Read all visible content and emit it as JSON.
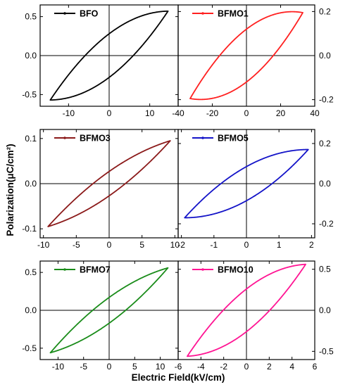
{
  "figure": {
    "xlabel": "Electric Field(kV/cm)",
    "ylabel": "Polarization(μC/cm²)"
  },
  "chart_data": [
    {
      "type": "line",
      "panel_row": 1,
      "panel_col": "left",
      "yaxis_side": "left",
      "legend": "BFO",
      "color": "#000000",
      "xlim": [
        -17,
        17
      ],
      "ylim": [
        -0.65,
        0.65
      ],
      "xticks": [
        -10,
        0,
        10
      ],
      "xtick_labels": [
        "-10",
        "0",
        "10"
      ],
      "yticks": [
        -0.5,
        0,
        0.5
      ],
      "ytick_labels": [
        "-0.5",
        "0.0",
        "0.5"
      ],
      "loop": {
        "x_max": 14.5,
        "y_max": 0.57,
        "x_min": -14.5,
        "y_min": -0.57,
        "remanent_polarization": 0.28,
        "coercive_field": 6
      }
    },
    {
      "type": "line",
      "panel_row": 1,
      "panel_col": "right",
      "yaxis_side": "right",
      "legend": "BFMO1",
      "color": "#ff2020",
      "xlim": [
        -40,
        40
      ],
      "ylim": [
        -0.23,
        0.23
      ],
      "xticks": [
        -40,
        -20,
        0,
        20,
        40
      ],
      "xtick_labels": [
        "-40",
        "-20",
        "0",
        "20",
        "40"
      ],
      "yticks": [
        -0.2,
        0,
        0.2
      ],
      "ytick_labels": [
        "-0.2",
        "0.0",
        "0.2"
      ],
      "loop": {
        "x_max": 33,
        "y_max": 0.195,
        "x_min": -33,
        "y_min": -0.195,
        "remanent_polarization": 0.12,
        "coercive_field": 19
      }
    },
    {
      "type": "line",
      "panel_row": 2,
      "panel_col": "left",
      "yaxis_side": "left",
      "legend": "BFMO3",
      "color": "#8b1a1a",
      "xlim": [
        -10.5,
        10.5
      ],
      "ylim": [
        -0.12,
        0.12
      ],
      "xticks": [
        -10,
        -5,
        0,
        5,
        10
      ],
      "xtick_labels": [
        "-10",
        "-5",
        "0",
        "5",
        "10"
      ],
      "yticks": [
        -0.1,
        0,
        0.1
      ],
      "ytick_labels": [
        "-0.1",
        "0.0",
        "0.1"
      ],
      "loop": {
        "x_max": 9.3,
        "y_max": 0.095,
        "x_min": -9.3,
        "y_min": -0.095,
        "remanent_polarization": 0.027,
        "coercive_field": 2.5
      }
    },
    {
      "type": "line",
      "panel_row": 2,
      "panel_col": "right",
      "yaxis_side": "right",
      "legend": "BFMO5",
      "color": "#1414c8",
      "xlim": [
        -2.1,
        2.1
      ],
      "ylim": [
        -0.27,
        0.27
      ],
      "xticks": [
        -2,
        -1,
        0,
        1,
        2
      ],
      "xtick_labels": [
        "-2",
        "-1",
        "0",
        "1",
        "2"
      ],
      "yticks": [
        -0.2,
        0,
        0.2
      ],
      "ytick_labels": [
        "-0.2",
        "0.0",
        "0.2"
      ],
      "loop": {
        "x_max": 1.9,
        "y_max": 0.17,
        "x_min": -1.9,
        "y_min": -0.17,
        "remanent_polarization": 0.085,
        "coercive_field": 1.1
      }
    },
    {
      "type": "line",
      "panel_row": 3,
      "panel_col": "left",
      "yaxis_side": "left",
      "legend": "BFMO7",
      "color": "#1a8c1a",
      "xlim": [
        -13.5,
        13.5
      ],
      "ylim": [
        -0.65,
        0.65
      ],
      "xticks": [
        -10,
        -5,
        0,
        5,
        10
      ],
      "xtick_labels": [
        "-10",
        "-5",
        "0",
        "5",
        "10"
      ],
      "yticks": [
        -0.5,
        0,
        0.5
      ],
      "ytick_labels": [
        "-0.5",
        "0.0",
        "0.5"
      ],
      "loop": {
        "x_max": 11.5,
        "y_max": 0.56,
        "x_min": -11.5,
        "y_min": -0.56,
        "remanent_polarization": 0.17,
        "coercive_field": 3.2
      }
    },
    {
      "type": "line",
      "panel_row": 3,
      "panel_col": "right",
      "yaxis_side": "right",
      "legend": "BFMO10",
      "color": "#ff1493",
      "xlim": [
        -6,
        6
      ],
      "ylim": [
        -0.6,
        0.6
      ],
      "xticks": [
        -6,
        -4,
        -2,
        0,
        2,
        4,
        6
      ],
      "xtick_labels": [
        "-6",
        "-4",
        "-2",
        "0",
        "2",
        "4",
        "6"
      ],
      "yticks": [
        -0.5,
        0,
        0.5
      ],
      "ytick_labels": [
        "-0.5",
        "0.0",
        "0.5"
      ],
      "loop": {
        "x_max": 5.2,
        "y_max": 0.56,
        "x_min": -5.2,
        "y_min": -0.56,
        "remanent_polarization": 0.26,
        "coercive_field": 2.3
      }
    }
  ]
}
